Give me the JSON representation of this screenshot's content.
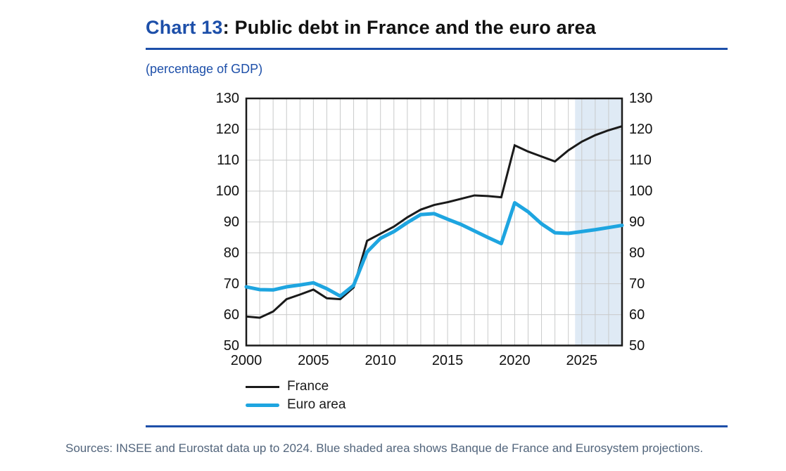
{
  "header": {
    "title_prefix": "Chart 13",
    "title_separator": ": ",
    "title_text": "Public debt in France and the euro area",
    "subtitle": "(percentage of GDP)",
    "accent_color": "#1d4fa9"
  },
  "footer": {
    "source_note": "Sources: INSEE and Eurostat data up to 2024. Blue shaded area shows Banque de France and Eurosystem projections.",
    "note_color": "#52657c"
  },
  "chart_data": {
    "type": "line",
    "title": "Public debt in France and the euro area",
    "unit": "percentage of GDP",
    "xlim": [
      2000,
      2028
    ],
    "ylim": [
      50,
      130
    ],
    "x_ticks": [
      2000,
      2005,
      2010,
      2015,
      2020,
      2025
    ],
    "y_ticks": [
      130,
      120,
      110,
      100,
      90,
      80,
      70,
      60,
      50
    ],
    "y_ticks_both_sides": true,
    "grid": true,
    "grid_color": "#c9caca",
    "frame_color": "#1a1a1a",
    "legend_position": "bottom-left",
    "projection_band": {
      "from": 2024.5,
      "to": 2028,
      "color": "#dfeaf5"
    },
    "x": [
      2000,
      2001,
      2002,
      2003,
      2004,
      2005,
      2006,
      2007,
      2008,
      2009,
      2010,
      2011,
      2012,
      2013,
      2014,
      2015,
      2016,
      2017,
      2018,
      2019,
      2020,
      2021,
      2022,
      2023,
      2024,
      2025,
      2026,
      2027,
      2028
    ],
    "series": [
      {
        "name": "France",
        "color": "#1a1a1a",
        "width": 3,
        "cap": "butt",
        "values": [
          59.4,
          59.0,
          61.0,
          65.0,
          66.5,
          68.1,
          65.3,
          65.0,
          68.8,
          83.9,
          86.2,
          88.5,
          91.5,
          94.0,
          95.5,
          96.4,
          97.5,
          98.6,
          98.4,
          98.0,
          114.8,
          112.8,
          111.2,
          109.6,
          113.2,
          116.0,
          118.1,
          119.7,
          121.0
        ]
      },
      {
        "name": "Euro area",
        "color": "#1ea5e0",
        "width": 5,
        "cap": "round",
        "values": [
          69.0,
          68.1,
          68.0,
          69.0,
          69.6,
          70.3,
          68.4,
          66.0,
          69.5,
          80.3,
          84.7,
          86.9,
          89.8,
          92.4,
          92.7,
          90.9,
          89.2,
          87.1,
          85.0,
          83.0,
          96.2,
          93.3,
          89.4,
          86.5,
          86.3,
          86.9,
          87.5,
          88.2,
          88.9
        ]
      }
    ]
  }
}
